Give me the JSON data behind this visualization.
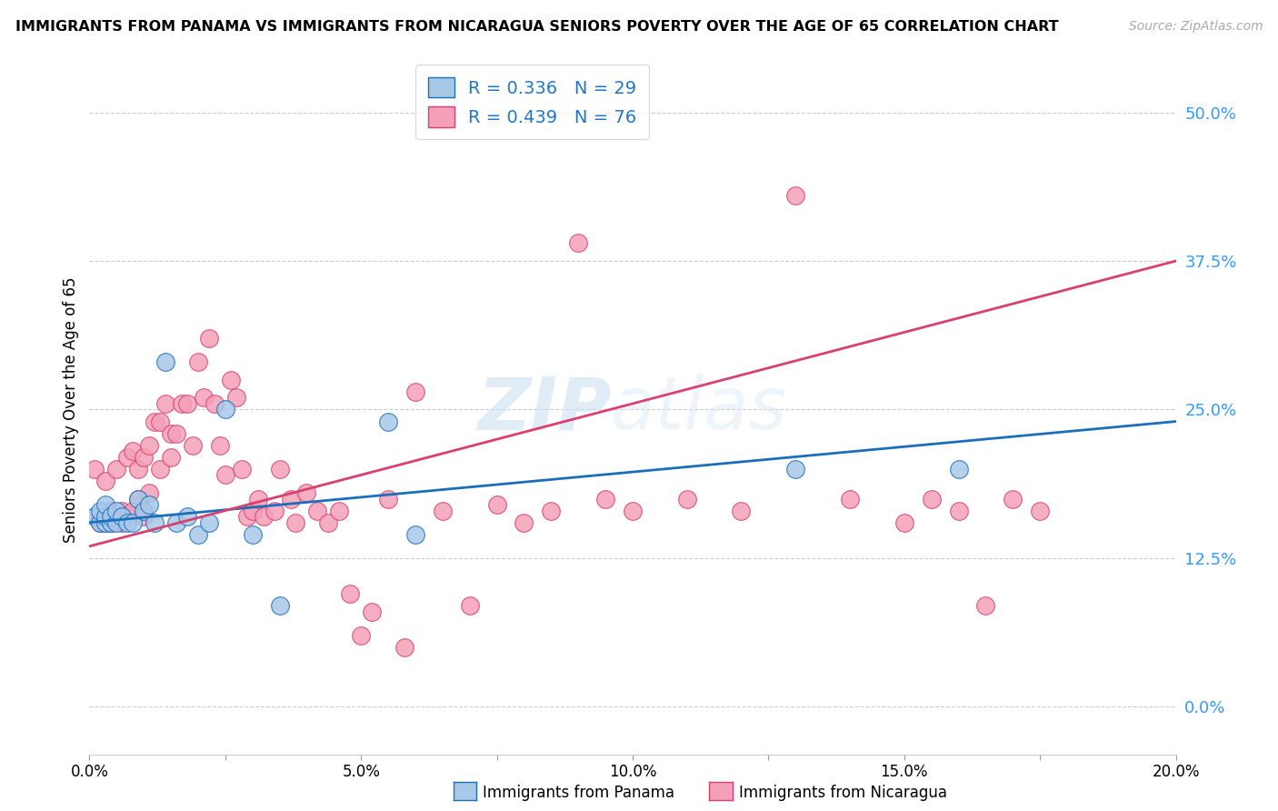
{
  "title": "IMMIGRANTS FROM PANAMA VS IMMIGRANTS FROM NICARAGUA SENIORS POVERTY OVER THE AGE OF 65 CORRELATION CHART",
  "source": "Source: ZipAtlas.com",
  "ylabel": "Seniors Poverty Over the Age of 65",
  "ylabel_ticks": [
    "0.0%",
    "12.5%",
    "25.0%",
    "37.5%",
    "50.0%"
  ],
  "ylabel_vals": [
    0.0,
    0.125,
    0.25,
    0.375,
    0.5
  ],
  "xlabel_ticks": [
    "0.0%",
    "",
    "5.0%",
    "",
    "10.0%",
    "",
    "15.0%",
    "",
    "20.0%"
  ],
  "xlabel_vals": [
    0.0,
    0.025,
    0.05,
    0.075,
    0.1,
    0.125,
    0.15,
    0.175,
    0.2
  ],
  "xlim": [
    0.0,
    0.2
  ],
  "ylim": [
    -0.04,
    0.54
  ],
  "r_panama": 0.336,
  "n_panama": 29,
  "r_nicaragua": 0.439,
  "n_nicaragua": 76,
  "color_panama": "#a8c8e8",
  "color_nicaragua": "#f4a0b8",
  "line_color_panama": "#1a6fba",
  "line_color_nicaragua": "#d94070",
  "watermark_line1": "ZIP",
  "watermark_line2": "atlas",
  "panama_x": [
    0.001,
    0.002,
    0.002,
    0.003,
    0.003,
    0.003,
    0.004,
    0.004,
    0.005,
    0.005,
    0.006,
    0.007,
    0.008,
    0.009,
    0.01,
    0.011,
    0.012,
    0.014,
    0.016,
    0.018,
    0.02,
    0.022,
    0.025,
    0.03,
    0.035,
    0.055,
    0.06,
    0.13,
    0.16
  ],
  "panama_y": [
    0.16,
    0.155,
    0.165,
    0.155,
    0.16,
    0.17,
    0.155,
    0.16,
    0.155,
    0.165,
    0.16,
    0.155,
    0.155,
    0.175,
    0.165,
    0.17,
    0.155,
    0.29,
    0.155,
    0.16,
    0.145,
    0.155,
    0.25,
    0.145,
    0.085,
    0.24,
    0.145,
    0.2,
    0.2
  ],
  "nicaragua_x": [
    0.001,
    0.002,
    0.002,
    0.003,
    0.003,
    0.004,
    0.004,
    0.005,
    0.005,
    0.006,
    0.006,
    0.007,
    0.007,
    0.008,
    0.008,
    0.009,
    0.009,
    0.01,
    0.01,
    0.011,
    0.011,
    0.012,
    0.013,
    0.013,
    0.014,
    0.015,
    0.015,
    0.016,
    0.017,
    0.018,
    0.019,
    0.02,
    0.021,
    0.022,
    0.023,
    0.024,
    0.025,
    0.026,
    0.027,
    0.028,
    0.029,
    0.03,
    0.031,
    0.032,
    0.034,
    0.035,
    0.037,
    0.038,
    0.04,
    0.042,
    0.044,
    0.046,
    0.048,
    0.05,
    0.052,
    0.055,
    0.058,
    0.06,
    0.065,
    0.07,
    0.075,
    0.08,
    0.085,
    0.09,
    0.095,
    0.1,
    0.11,
    0.12,
    0.13,
    0.14,
    0.15,
    0.155,
    0.16,
    0.165,
    0.17,
    0.175
  ],
  "nicaragua_y": [
    0.2,
    0.16,
    0.155,
    0.19,
    0.155,
    0.155,
    0.165,
    0.16,
    0.2,
    0.155,
    0.165,
    0.16,
    0.21,
    0.165,
    0.215,
    0.175,
    0.2,
    0.16,
    0.21,
    0.18,
    0.22,
    0.24,
    0.24,
    0.2,
    0.255,
    0.23,
    0.21,
    0.23,
    0.255,
    0.255,
    0.22,
    0.29,
    0.26,
    0.31,
    0.255,
    0.22,
    0.195,
    0.275,
    0.26,
    0.2,
    0.16,
    0.165,
    0.175,
    0.16,
    0.165,
    0.2,
    0.175,
    0.155,
    0.18,
    0.165,
    0.155,
    0.165,
    0.095,
    0.06,
    0.08,
    0.175,
    0.05,
    0.265,
    0.165,
    0.085,
    0.17,
    0.155,
    0.165,
    0.39,
    0.175,
    0.165,
    0.175,
    0.165,
    0.43,
    0.175,
    0.155,
    0.175,
    0.165,
    0.085,
    0.175,
    0.165
  ]
}
